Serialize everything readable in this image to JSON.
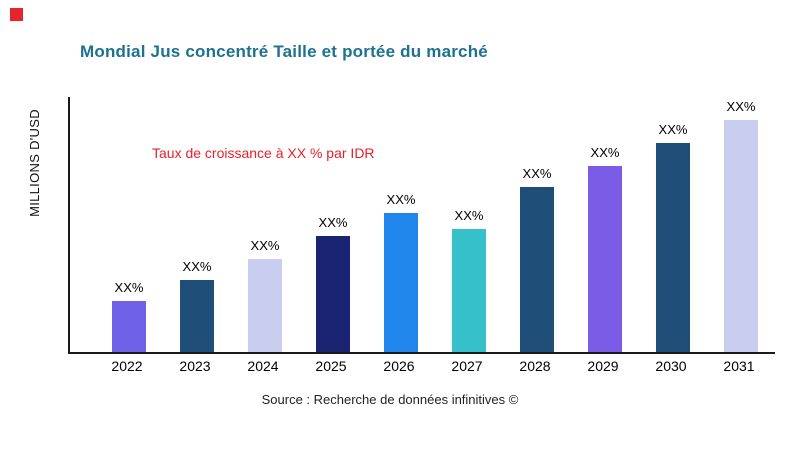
{
  "brand": {
    "square_color": "#e4252b"
  },
  "header": {
    "title": "Mondial Jus concentré Taille et portée du marché",
    "title_color": "#1d7291"
  },
  "chart_data": {
    "type": "bar",
    "title": "Mondial Jus concentré Taille et portée du marché",
    "xlabel": "",
    "ylabel": "MILLIONS D'USD",
    "annotation": "Taux de croissance à XX % par IDR",
    "annotation_color": "#e62229",
    "categories": [
      "2022",
      "2023",
      "2024",
      "2025",
      "2026",
      "2027",
      "2028",
      "2029",
      "2030",
      "2031"
    ],
    "values": [
      22,
      31,
      40,
      50,
      60,
      53,
      71,
      80,
      90,
      100
    ],
    "bar_labels": [
      "XX%",
      "XX%",
      "XX%",
      "XX%",
      "XX%",
      "XX%",
      "XX%",
      "XX%",
      "XX%",
      "XX%"
    ],
    "bar_colors": [
      "#6f62e8",
      "#1f4e79",
      "#c9cdf0",
      "#1a2472",
      "#2186eb",
      "#35c0ca",
      "#1f4e79",
      "#7a5ce6",
      "#1f4e79",
      "#c9cdf0"
    ],
    "ylim": [
      0,
      110
    ],
    "grid": false,
    "legend": false,
    "axis_color": "#1a1a1a"
  },
  "footer": {
    "source": "Source : Recherche de données infinitives ©"
  }
}
